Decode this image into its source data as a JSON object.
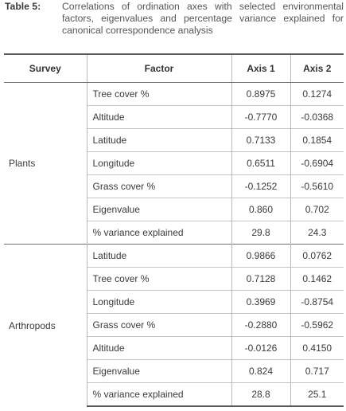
{
  "caption": {
    "label": "Table 5:",
    "text": "Correlations of ordination axes with selected environmental factors, eigenvalues and percentage variance explained for canonical correspondence analysis"
  },
  "table": {
    "headers": [
      "Survey",
      "Factor",
      "Axis 1",
      "Axis 2"
    ],
    "groups": [
      {
        "survey": "Plants",
        "rows": [
          {
            "factor": "Tree cover %",
            "axis1": "0.8975",
            "axis2": "0.1274"
          },
          {
            "factor": "Altitude",
            "axis1": "-0.7770",
            "axis2": "-0.0368"
          },
          {
            "factor": "Latitude",
            "axis1": "0.7133",
            "axis2": "0.1854"
          },
          {
            "factor": "Longitude",
            "axis1": "0.6511",
            "axis2": "-0.6904"
          },
          {
            "factor": "Grass cover %",
            "axis1": "-0.1252",
            "axis2": "-0.5610"
          },
          {
            "factor": "Eigenvalue",
            "axis1": "0.860",
            "axis2": "0.702"
          },
          {
            "factor": "% variance explained",
            "axis1": "29.8",
            "axis2": "24.3"
          }
        ]
      },
      {
        "survey": "Arthropods",
        "rows": [
          {
            "factor": "Latitude",
            "axis1": "0.9866",
            "axis2": "0.0762"
          },
          {
            "factor": "Tree cover %",
            "axis1": "0.7128",
            "axis2": "0.1462"
          },
          {
            "factor": "Longitude",
            "axis1": "0.3969",
            "axis2": "-0.8754"
          },
          {
            "factor": "Grass cover %",
            "axis1": "-0.2880",
            "axis2": "-0.5962"
          },
          {
            "factor": "Altitude",
            "axis1": "-0.0126",
            "axis2": "0.4150"
          },
          {
            "factor": "Eigenvalue",
            "axis1": "0.824",
            "axis2": "0.717"
          },
          {
            "factor": "% variance explained",
            "axis1": "28.8",
            "axis2": "25.1"
          }
        ]
      }
    ]
  }
}
